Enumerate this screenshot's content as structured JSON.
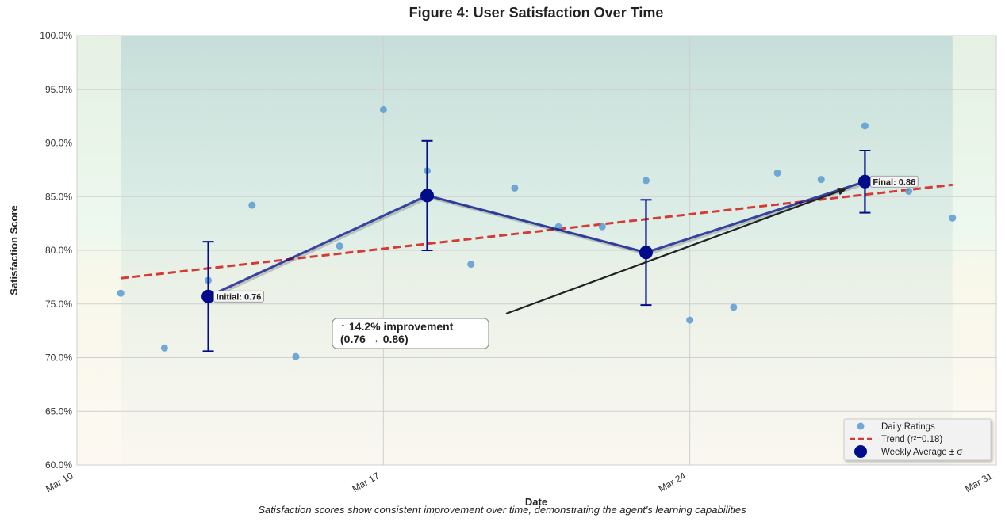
{
  "chart_data": {
    "type": "line",
    "title": "Figure 4: User Satisfaction Over Time",
    "xlabel": "Date",
    "ylabel": "Satisfaction Score",
    "caption": "Satisfaction scores show consistent improvement over time, demonstrating the agent's learning capabilities",
    "x_range_days": [
      0,
      21
    ],
    "x_ticks": [
      {
        "day": 0,
        "label": "Mar 10"
      },
      {
        "day": 7,
        "label": "Mar 17"
      },
      {
        "day": 14,
        "label": "Mar 24"
      },
      {
        "day": 21,
        "label": "Mar 31"
      }
    ],
    "ylim": [
      0.6,
      1.0
    ],
    "y_ticks": [
      {
        "value": 0.6,
        "label": "60.0%"
      },
      {
        "value": 0.65,
        "label": "65.0%"
      },
      {
        "value": 0.7,
        "label": "70.0%"
      },
      {
        "value": 0.75,
        "label": "75.0%"
      },
      {
        "value": 0.8,
        "label": "80.0%"
      },
      {
        "value": 0.85,
        "label": "85.0%"
      },
      {
        "value": 0.9,
        "label": "90.0%"
      },
      {
        "value": 0.95,
        "label": "95.0%"
      },
      {
        "value": 1.0,
        "label": "100.0%"
      }
    ],
    "grid": true,
    "legend_position": "bottom-right",
    "series": [
      {
        "name": "Daily Ratings",
        "kind": "scatter",
        "color": "#5b9bd0",
        "points": [
          {
            "day": 1,
            "value": 0.76
          },
          {
            "day": 2,
            "value": 0.709
          },
          {
            "day": 3,
            "value": 0.772
          },
          {
            "day": 4,
            "value": 0.842
          },
          {
            "day": 5,
            "value": 0.701
          },
          {
            "day": 6,
            "value": 0.804
          },
          {
            "day": 7,
            "value": 0.931
          },
          {
            "day": 8,
            "value": 0.874
          },
          {
            "day": 9,
            "value": 0.787
          },
          {
            "day": 10,
            "value": 0.858
          },
          {
            "day": 11,
            "value": 0.822
          },
          {
            "day": 12,
            "value": 0.822
          },
          {
            "day": 13,
            "value": 0.865
          },
          {
            "day": 14,
            "value": 0.735
          },
          {
            "day": 15,
            "value": 0.747
          },
          {
            "day": 16,
            "value": 0.872
          },
          {
            "day": 17,
            "value": 0.866
          },
          {
            "day": 18,
            "value": 0.916
          },
          {
            "day": 19,
            "value": 0.855
          },
          {
            "day": 20,
            "value": 0.83
          }
        ]
      },
      {
        "name": "Trend (r²=0.18)",
        "kind": "trend",
        "color": "#d63a35",
        "start": {
          "day": 1,
          "value": 0.774
        },
        "end": {
          "day": 20,
          "value": 0.861
        }
      },
      {
        "name": "Weekly Average ± σ",
        "kind": "line-errorbar",
        "color": "#000c8a",
        "points": [
          {
            "day": 3,
            "value": 0.757,
            "err": 0.051
          },
          {
            "day": 8,
            "value": 0.851,
            "err": 0.051
          },
          {
            "day": 13,
            "value": 0.798,
            "err": 0.049
          },
          {
            "day": 18,
            "value": 0.864,
            "err": 0.029
          }
        ]
      }
    ],
    "annotations": {
      "initial_label": "Initial: 0.76",
      "final_label": "Final: 0.86",
      "improvement_line1": "↑ 14.2% improvement",
      "improvement_line2": "(0.76 → 0.86)"
    },
    "background_bands": [
      {
        "from": 0.6,
        "to": 0.8,
        "color": "#fdf3d8"
      },
      {
        "from": 0.8,
        "to": 0.9,
        "color": "#d8f4df"
      },
      {
        "from": 0.9,
        "to": 1.0,
        "color": "#d9ecd5"
      }
    ],
    "shaded_period_days": [
      1,
      20
    ]
  }
}
